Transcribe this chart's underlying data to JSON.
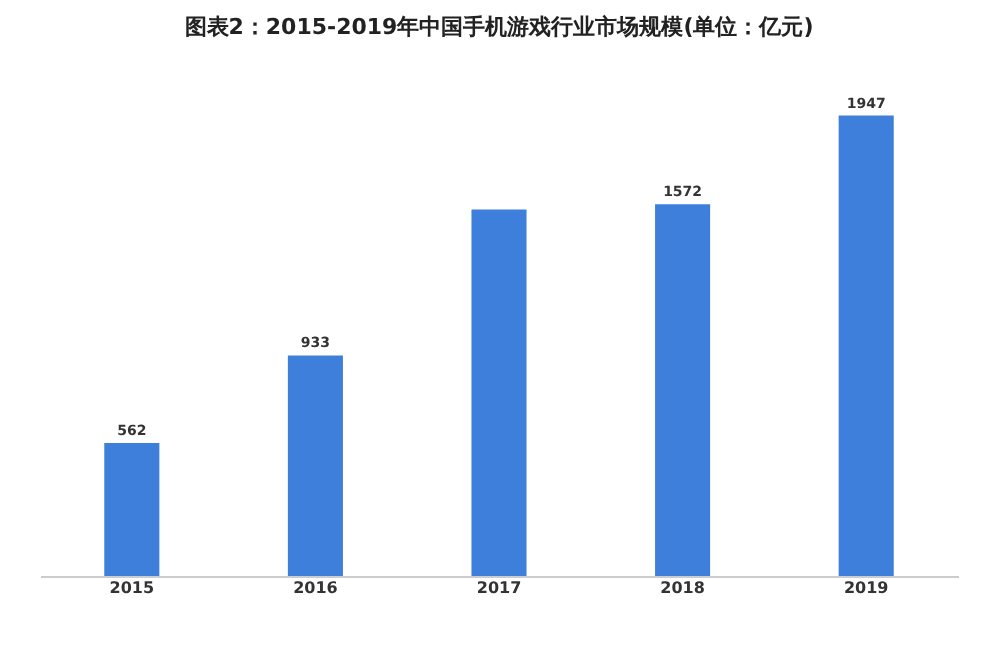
{
  "chart_data": {
    "type": "bar",
    "title": "图表2：2015-2019年中国手机游戏行业市场规模(单位：亿元)",
    "categories": [
      "2015",
      "2016",
      "2017",
      "2018",
      "2019"
    ],
    "values": [
      562,
      933,
      1550,
      1572,
      1947
    ],
    "value_labels": [
      "562",
      "933",
      null,
      "1572",
      "1947"
    ],
    "color": "#3f7fdc",
    "grid": false
  }
}
